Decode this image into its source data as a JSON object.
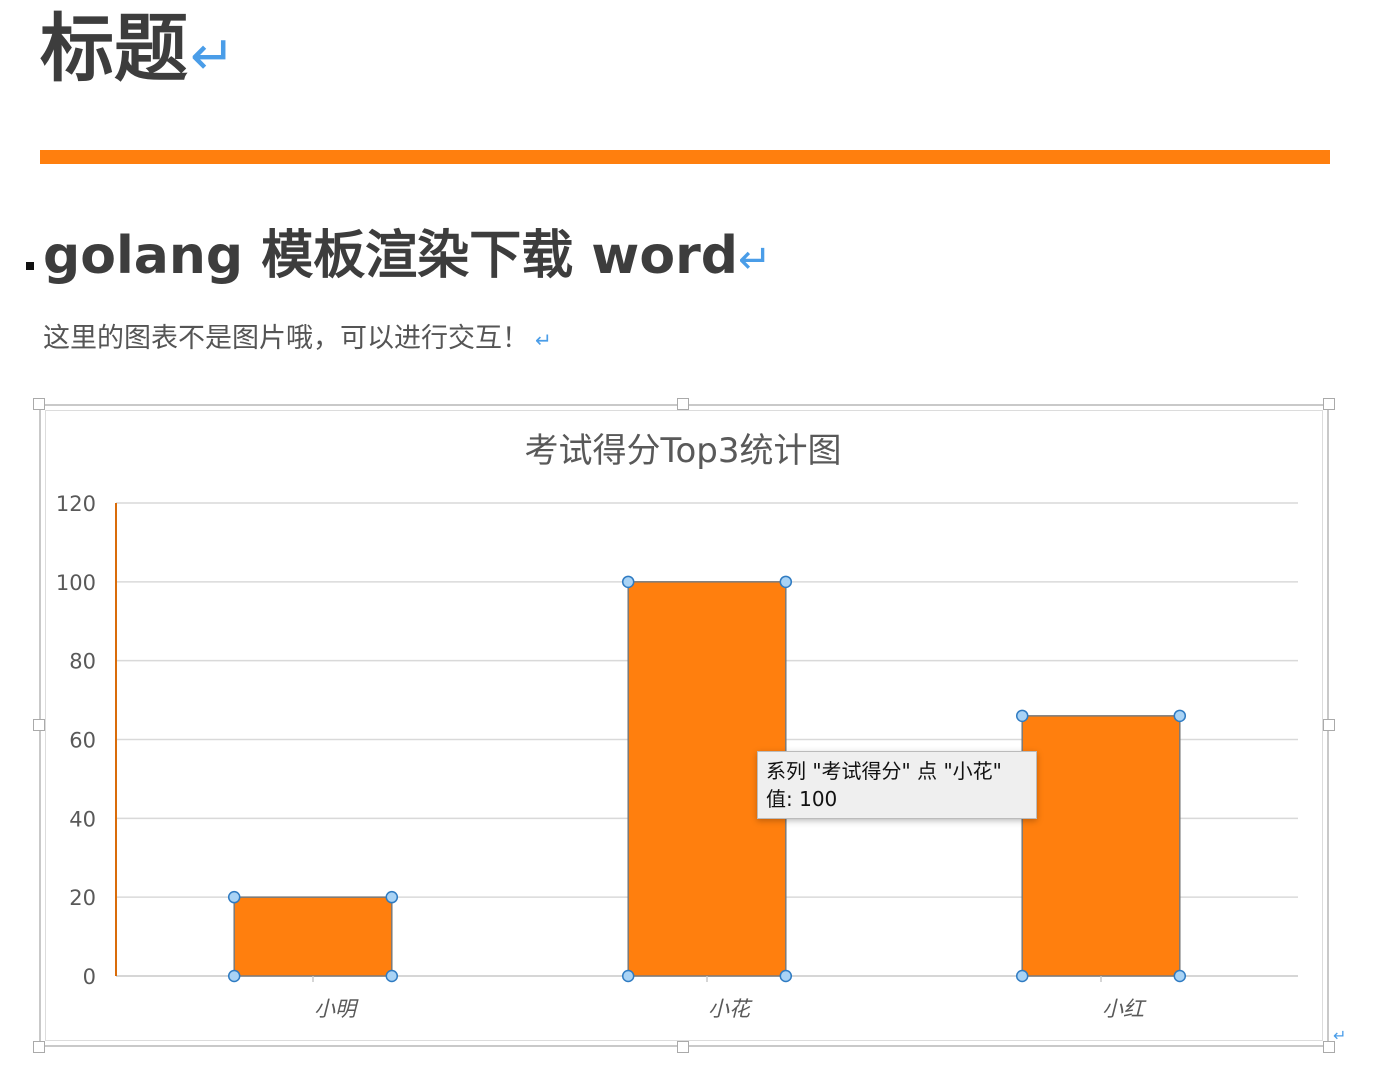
{
  "document": {
    "title": "标题",
    "return_mark": "↵",
    "heading": "golang 模板渲染下载 word",
    "paragraph": "这里的图表不是图片哦，可以进行交互！"
  },
  "colors": {
    "accent": "#ff7f0e",
    "return_mark": "#4a9de8",
    "axis_line": "#d96c0a"
  },
  "tooltip": {
    "line1": "系列 \"考试得分\" 点 \"小花\"",
    "line2": "值: 100"
  },
  "chart_data": {
    "type": "bar",
    "title": "考试得分Top3统计图",
    "categories": [
      "小明",
      "小花",
      "小红"
    ],
    "values": [
      20,
      100,
      66
    ],
    "ylim": [
      0,
      120
    ],
    "yticks": [
      0,
      20,
      40,
      60,
      80,
      100,
      120
    ],
    "grid": true,
    "legend": "none",
    "bar_color": "#ff7f0e"
  }
}
